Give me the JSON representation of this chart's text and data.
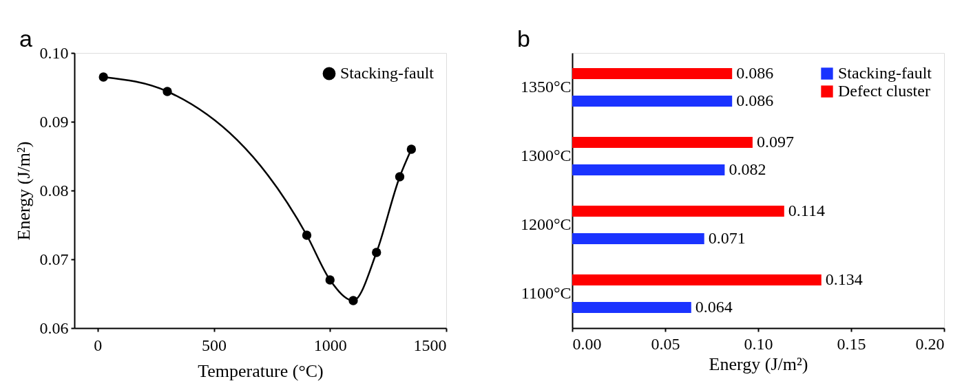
{
  "chart_data": [
    {
      "type": "line",
      "annotations": [
        "a"
      ],
      "xlabel": "Temperature (°C)",
      "ylabel": "Energy (J/m²)",
      "x": [
        25,
        300,
        900,
        1000,
        1100,
        1200,
        1300,
        1350
      ],
      "series": [
        {
          "name": "Stacking-fault",
          "color": "#000000",
          "values": [
            0.0965,
            0.0944,
            0.0735,
            0.067,
            0.064,
            0.071,
            0.082,
            0.086
          ]
        }
      ],
      "xlim": [
        -100,
        1500
      ],
      "xticks": [
        0,
        500,
        1000,
        1500
      ],
      "ylim": [
        0.06,
        0.1
      ],
      "yticks": [
        {
          "value": 0.06,
          "label": "0.06"
        },
        {
          "value": 0.07,
          "label": "0.07"
        },
        {
          "value": 0.08,
          "label": "0.08"
        },
        {
          "value": 0.09,
          "label": "0.09"
        },
        {
          "value": 0.1,
          "label": "0.10"
        }
      ],
      "marker": "circle",
      "line_style": "solid",
      "legend": "top right",
      "grid": false
    },
    {
      "type": "bar",
      "orientation": "horizontal",
      "annotations": [
        "b"
      ],
      "xlabel": "Energy (J/m²)",
      "categories": [
        "1350°C",
        "1300°C",
        "1200°C",
        "1100°C"
      ],
      "series": [
        {
          "name": "Stacking-fault",
          "color": "#1a33ff",
          "values": [
            0.086,
            0.082,
            0.071,
            0.064
          ]
        },
        {
          "name": "Defect cluster",
          "color": "#ff0000",
          "values": [
            0.086,
            0.097,
            0.114,
            0.134
          ]
        }
      ],
      "xlim": [
        0,
        0.2
      ],
      "xticks": [
        {
          "value": 0,
          "label": "0.00"
        },
        {
          "value": 0.05,
          "label": "0.05"
        },
        {
          "value": 0.1,
          "label": "0.10"
        },
        {
          "value": 0.15,
          "label": "0.15"
        },
        {
          "value": 0.2,
          "label": "0.20"
        }
      ],
      "data_labels": true,
      "legend": "top right",
      "grid": false
    }
  ]
}
